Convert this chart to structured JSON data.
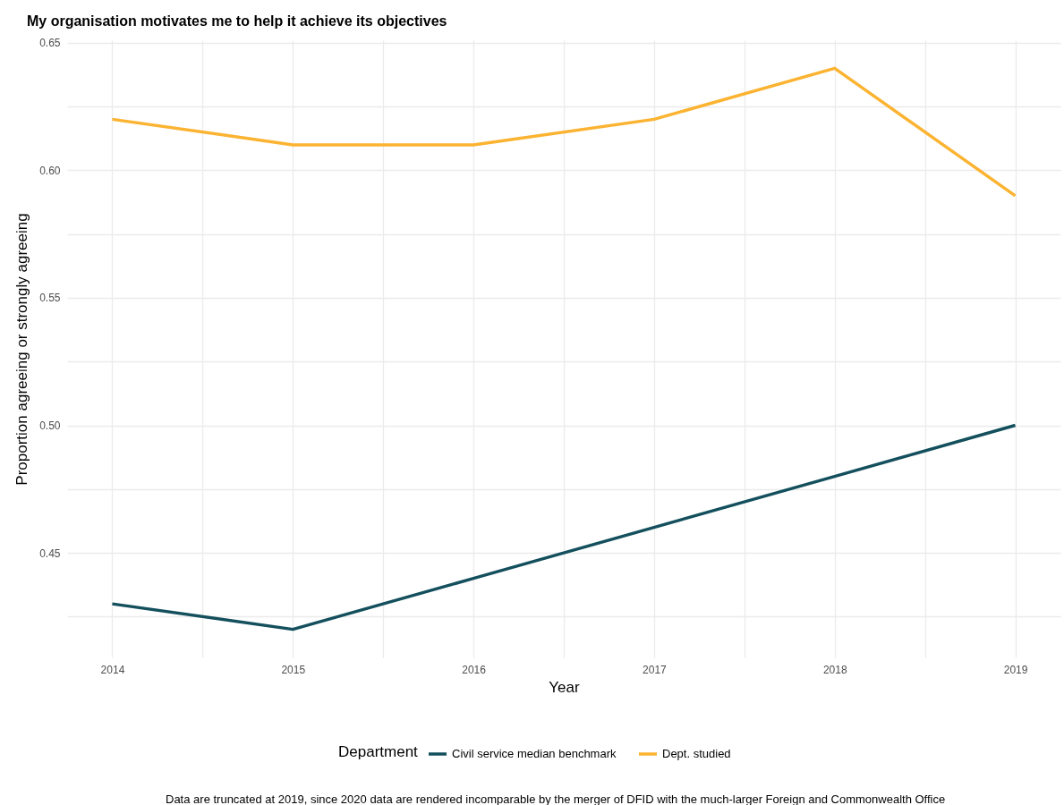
{
  "chart_data": {
    "type": "line",
    "title": "My organisation motivates me to help it achieve its objectives",
    "xlabel": "Year",
    "ylabel": "Proportion agreeing or strongly agreeing",
    "legend_title": "Department",
    "x": [
      2014,
      2015,
      2016,
      2017,
      2018,
      2019
    ],
    "series": [
      {
        "name": "Civil service median benchmark",
        "color": "#134f5c",
        "values": [
          0.43,
          0.42,
          0.44,
          0.46,
          0.48,
          0.5
        ]
      },
      {
        "name": "Dept. studied",
        "color": "#fbb331",
        "values": [
          0.62,
          0.61,
          0.61,
          0.62,
          0.64,
          0.59
        ]
      }
    ],
    "xlim": [
      2013.75,
      2019.25
    ],
    "ylim": [
      0.409,
      0.651
    ],
    "xticks": [
      2014,
      {
        "value": 2014.5,
        "label": null
      },
      2015,
      {
        "value": 2015.5,
        "label": null
      },
      2016,
      {
        "value": 2016.5,
        "label": null
      },
      2017,
      {
        "value": 2017.5,
        "label": null
      },
      2018,
      {
        "value": 2018.5,
        "label": null
      },
      2019
    ],
    "yticks": [
      {
        "value": 0.425,
        "label": null
      },
      {
        "value": 0.45,
        "label": "0.45"
      },
      {
        "value": 0.475,
        "label": null
      },
      {
        "value": 0.5,
        "label": "0.50"
      },
      {
        "value": 0.525,
        "label": null
      },
      {
        "value": 0.55,
        "label": "0.55"
      },
      {
        "value": 0.575,
        "label": null
      },
      {
        "value": 0.6,
        "label": "0.60"
      },
      {
        "value": 0.625,
        "label": null
      },
      {
        "value": 0.65,
        "label": "0.65"
      }
    ],
    "grid": true,
    "legend": "bottom",
    "marker": "none",
    "line_style": "solid",
    "annotations": [
      "Data are truncated at 2019, since 2020 data are rendered incomparable by the merger of DFID with the much-larger Foreign and Commonwealth Office"
    ]
  }
}
